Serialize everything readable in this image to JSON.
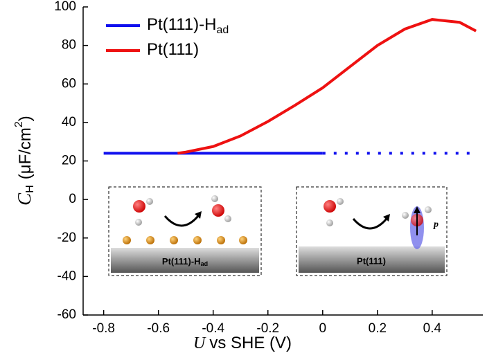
{
  "chart_data": {
    "type": "line",
    "xlabel": {
      "symbol": "U",
      "text": "vs SHE  (V)"
    },
    "ylabel": {
      "symbol": "C",
      "subscript": "H",
      "text": "(μF/cm",
      "superscript": "2",
      "close": ")"
    },
    "xlim": [
      -0.875,
      0.585
    ],
    "xticks": [
      -0.8,
      -0.6,
      -0.4,
      -0.2,
      0,
      0.2,
      0.4
    ],
    "ylim": [
      -60,
      100
    ],
    "yticks": [
      -60,
      -40,
      -20,
      0,
      20,
      40,
      60,
      80,
      100
    ],
    "series": [
      {
        "name": "Pt(111)-H",
        "name_subscript": "ad",
        "color": "#1010ee",
        "x": [
          -0.8,
          0,
          0.55
        ],
        "values": [
          24,
          24,
          24
        ],
        "dotted_from_x": 0
      },
      {
        "name": "Pt(111)",
        "color": "#ee1111",
        "x": [
          -0.53,
          -0.5,
          -0.4,
          -0.3,
          -0.2,
          -0.1,
          0,
          0.1,
          0.2,
          0.3,
          0.4,
          0.5,
          0.56
        ],
        "values": [
          24,
          24.6,
          27.5,
          33,
          40.5,
          49,
          58,
          69,
          80,
          88.5,
          93.5,
          92,
          87.5
        ]
      }
    ],
    "insets": [
      {
        "label": "Pt(111)-H",
        "label_subscript": "ad"
      },
      {
        "label": "Pt(111)",
        "vector": "p"
      }
    ]
  }
}
